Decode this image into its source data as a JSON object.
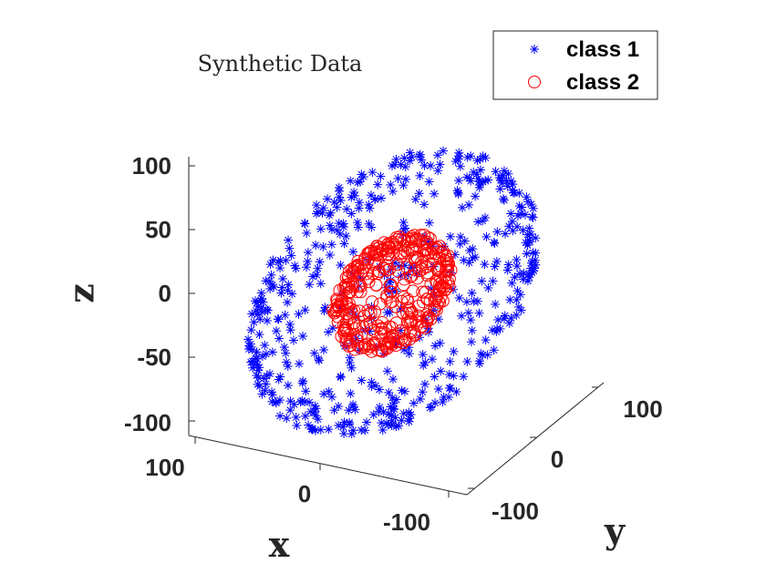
{
  "chart_data": {
    "type": "scatter",
    "title": "Synthetic Data",
    "xlabel": "x",
    "ylabel": "y",
    "zlabel": "z",
    "xlim": [
      -100,
      100
    ],
    "ylim": [
      -100,
      100
    ],
    "zlim": [
      -100,
      100
    ],
    "x_ticks": [
      "100",
      "0",
      "-100"
    ],
    "y_ticks": [
      "100",
      "0",
      "-100"
    ],
    "z_ticks": [
      "100",
      "50",
      "0",
      "-50",
      "-100"
    ],
    "grid": false,
    "legend_position": "top-right",
    "series": [
      {
        "name": "class 1",
        "marker": "asterisk",
        "color": "#0000ff",
        "description": "points on a sphere shell of radius ~100 centered at origin",
        "radius": 100,
        "points": [
          [
            0,
            0,
            100
          ],
          [
            0,
            0,
            -100
          ],
          [
            100,
            0,
            0
          ],
          [
            -100,
            0,
            0
          ],
          [
            0,
            100,
            0
          ],
          [
            0,
            -100,
            0
          ],
          [
            70,
            70,
            0
          ],
          [
            -70,
            70,
            0
          ],
          [
            70,
            -70,
            0
          ],
          [
            -70,
            -70,
            0
          ],
          [
            70,
            0,
            70
          ],
          [
            -70,
            0,
            70
          ],
          [
            0,
            70,
            70
          ],
          [
            0,
            -70,
            70
          ],
          [
            70,
            0,
            -70
          ],
          [
            -70,
            0,
            -70
          ],
          [
            0,
            70,
            -70
          ],
          [
            0,
            -70,
            -70
          ],
          [
            58,
            58,
            58
          ],
          [
            -58,
            58,
            58
          ],
          [
            58,
            -58,
            58
          ],
          [
            -58,
            -58,
            58
          ],
          [
            58,
            58,
            -58
          ],
          [
            -58,
            58,
            -58
          ],
          [
            58,
            -58,
            -58
          ],
          [
            -58,
            -58,
            -58
          ]
        ]
      },
      {
        "name": "class 2",
        "marker": "circle",
        "color": "#ff0000",
        "description": "points on a sphere shell of radius ~40 centered at origin",
        "radius": 40,
        "points": [
          [
            0,
            0,
            40
          ],
          [
            0,
            0,
            -40
          ],
          [
            40,
            0,
            0
          ],
          [
            -40,
            0,
            0
          ],
          [
            0,
            40,
            0
          ],
          [
            0,
            -40,
            0
          ],
          [
            28,
            28,
            0
          ],
          [
            -28,
            28,
            0
          ],
          [
            28,
            -28,
            0
          ],
          [
            -28,
            -28,
            0
          ],
          [
            28,
            0,
            28
          ],
          [
            -28,
            0,
            28
          ],
          [
            0,
            28,
            28
          ],
          [
            0,
            -28,
            28
          ],
          [
            28,
            0,
            -28
          ],
          [
            -28,
            0,
            -28
          ],
          [
            0,
            28,
            -28
          ],
          [
            0,
            -28,
            -28
          ]
        ]
      }
    ]
  }
}
